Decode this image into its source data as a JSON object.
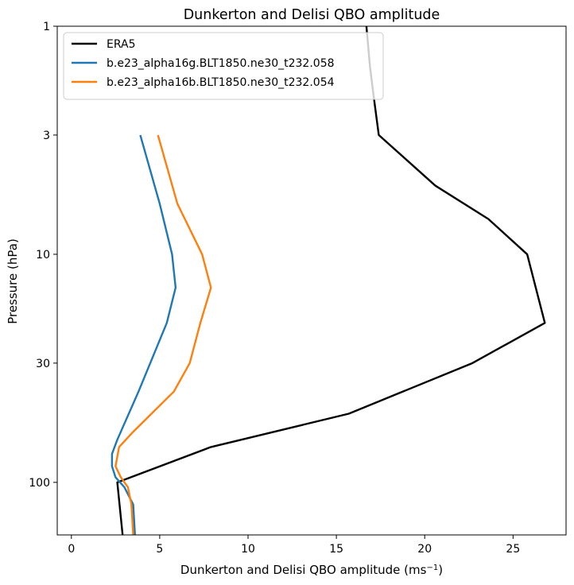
{
  "chart_data": {
    "type": "line",
    "title": "Dunkerton and Delisi QBO amplitude",
    "xlabel": "Dunkerton and Delisi QBO amplitude (ms",
    "xlabel_exponent": "−1",
    "xlabel_suffix": ")",
    "ylabel": "Pressure (hPa)",
    "xlim": [
      -0.8,
      28.0
    ],
    "ylim": [
      170,
      1
    ],
    "yscale": "log",
    "xticks": [
      0,
      5,
      10,
      15,
      20,
      25
    ],
    "xtick_labels": [
      "0",
      "5",
      "10",
      "15",
      "20",
      "25"
    ],
    "yticks": [
      1,
      3,
      10,
      30,
      100
    ],
    "ytick_labels": [
      "1",
      "3",
      "10",
      "30",
      "100"
    ],
    "legend_position": "upper-left",
    "series": [
      {
        "name": "ERA5",
        "color": "#000000",
        "points": [
          {
            "x": 16.7,
            "y": 1
          },
          {
            "x": 16.9,
            "y": 1.5
          },
          {
            "x": 17.1,
            "y": 2
          },
          {
            "x": 17.4,
            "y": 3
          },
          {
            "x": 20.6,
            "y": 5
          },
          {
            "x": 23.6,
            "y": 7
          },
          {
            "x": 25.8,
            "y": 10
          },
          {
            "x": 26.8,
            "y": 20
          },
          {
            "x": 22.7,
            "y": 30
          },
          {
            "x": 15.7,
            "y": 50
          },
          {
            "x": 7.9,
            "y": 70
          },
          {
            "x": 2.6,
            "y": 100
          },
          {
            "x": 2.9,
            "y": 170
          }
        ]
      },
      {
        "name": "b.e23_alpha16g.BLT1850.ne30_t232.058",
        "color": "#1f77b4",
        "points": [
          {
            "x": 3.9,
            "y": 3
          },
          {
            "x": 5.0,
            "y": 6
          },
          {
            "x": 5.7,
            "y": 10
          },
          {
            "x": 5.9,
            "y": 14
          },
          {
            "x": 5.4,
            "y": 20
          },
          {
            "x": 3.8,
            "y": 40
          },
          {
            "x": 2.6,
            "y": 65
          },
          {
            "x": 2.3,
            "y": 75
          },
          {
            "x": 2.3,
            "y": 85
          },
          {
            "x": 2.5,
            "y": 95
          },
          {
            "x": 3.0,
            "y": 105
          },
          {
            "x": 3.5,
            "y": 125
          },
          {
            "x": 3.6,
            "y": 170
          }
        ]
      },
      {
        "name": "b.e23_alpha16b.BLT1850.ne30_t232.054",
        "color": "#ff7f0e",
        "points": [
          {
            "x": 4.9,
            "y": 3
          },
          {
            "x": 6.0,
            "y": 6
          },
          {
            "x": 7.4,
            "y": 10
          },
          {
            "x": 7.9,
            "y": 14
          },
          {
            "x": 7.3,
            "y": 20
          },
          {
            "x": 6.7,
            "y": 30
          },
          {
            "x": 5.8,
            "y": 40
          },
          {
            "x": 3.5,
            "y": 60
          },
          {
            "x": 2.7,
            "y": 70
          },
          {
            "x": 2.5,
            "y": 85
          },
          {
            "x": 2.8,
            "y": 95
          },
          {
            "x": 3.2,
            "y": 105
          },
          {
            "x": 3.4,
            "y": 125
          },
          {
            "x": 3.5,
            "y": 170
          }
        ]
      }
    ]
  }
}
